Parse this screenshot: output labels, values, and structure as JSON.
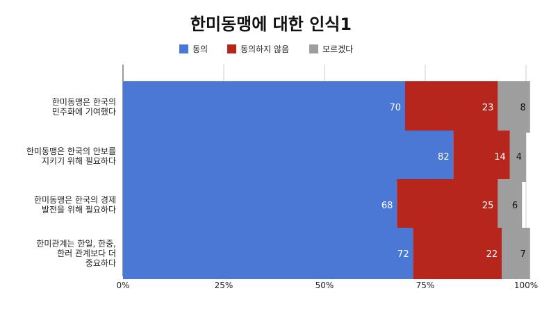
{
  "chart_data": {
    "type": "bar",
    "orientation": "horizontal",
    "stacked": "percent",
    "title": "한미동맹에 대한 인식1",
    "legend_position": "top",
    "categories": [
      [
        "한미동맹은 한국의",
        "민주화에 기여했다"
      ],
      [
        "한미동맹은 한국의 안보를",
        "지키기 위해 필요하다"
      ],
      [
        "한미동맹은 한국의 경제",
        "발전을 위해 필요하다"
      ],
      [
        "한미관계는 한일, 한중,",
        "한러 관계보다 더",
        "중요하다"
      ]
    ],
    "series": [
      {
        "name": "동의",
        "color": "#4a78d4",
        "values": [
          70,
          82,
          68,
          72
        ]
      },
      {
        "name": "동의하지 않음",
        "color": "#b7261d",
        "values": [
          23,
          14,
          25,
          22
        ]
      },
      {
        "name": "모르겠다",
        "color": "#9e9e9e",
        "values": [
          8,
          4,
          6,
          7
        ]
      }
    ],
    "xticks": [
      "0%",
      "25%",
      "50%",
      "75%",
      "100%"
    ],
    "xlim": [
      0,
      100
    ],
    "grid": true
  }
}
